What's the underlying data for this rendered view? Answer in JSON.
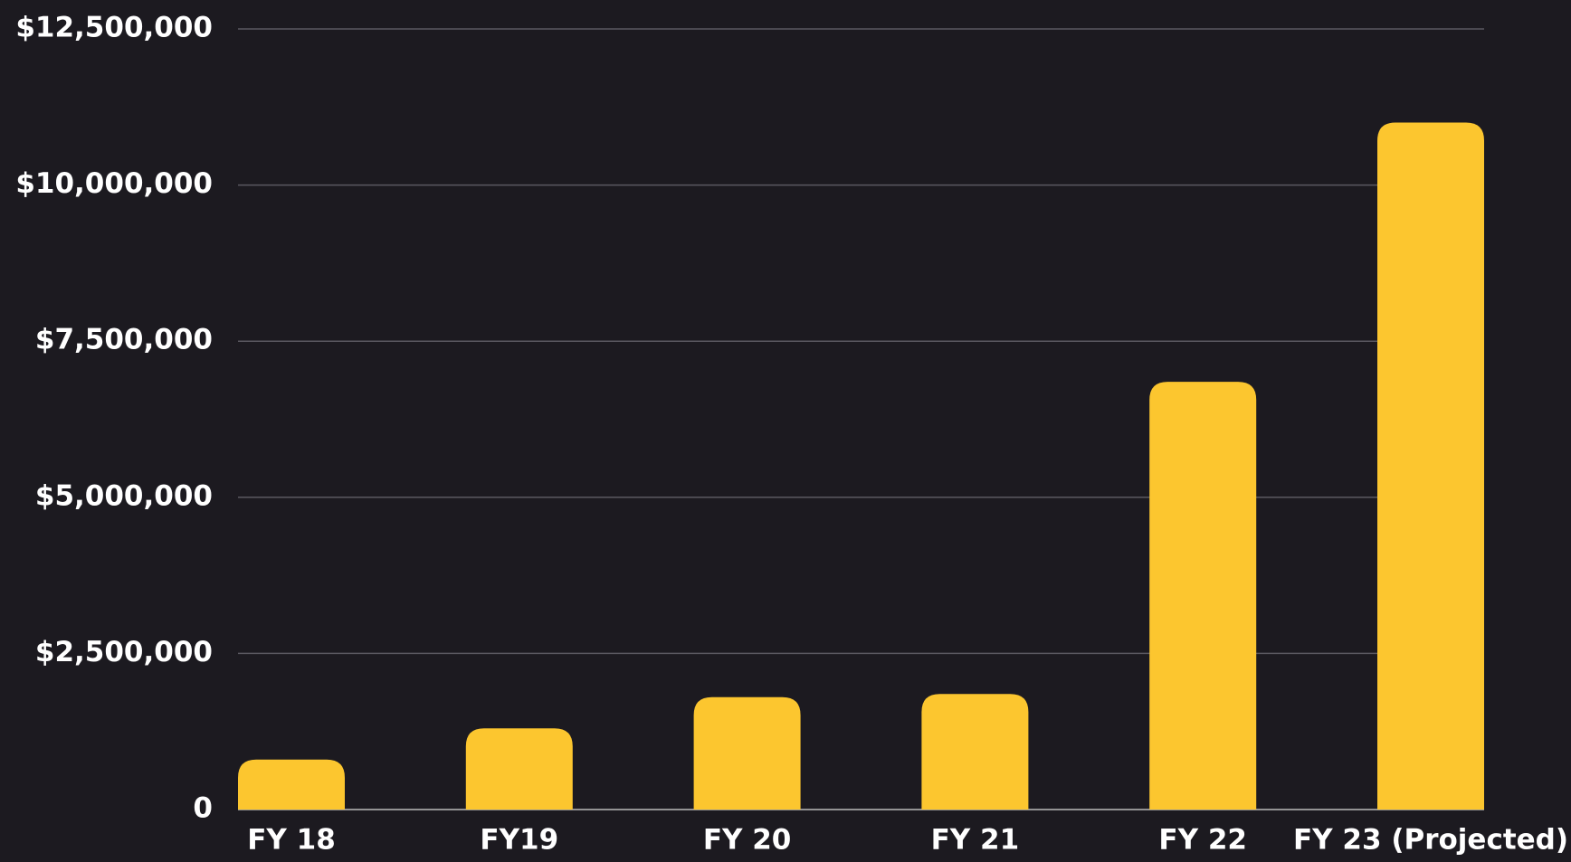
{
  "chart_data": {
    "type": "bar",
    "categories": [
      "FY 18",
      "FY19",
      "FY 20",
      "FY 21",
      "FY 22",
      "FY 23 (Projected)"
    ],
    "values": [
      800000,
      1300000,
      1800000,
      1850000,
      6850000,
      11000000
    ],
    "color": "#fcc62f",
    "ylim": [
      0,
      12500000
    ],
    "yticks": [
      0,
      {
        "value": 2500000,
        "label": "$2,500,000"
      },
      {
        "value": 5000000,
        "label": "$5,000,000"
      },
      {
        "value": 7500000,
        "label": "$7,500,000"
      },
      {
        "value": 10000000,
        "label": "$10,000,000"
      },
      {
        "value": 12500000,
        "label": "$12,500,000"
      }
    ],
    "grid": true
  }
}
